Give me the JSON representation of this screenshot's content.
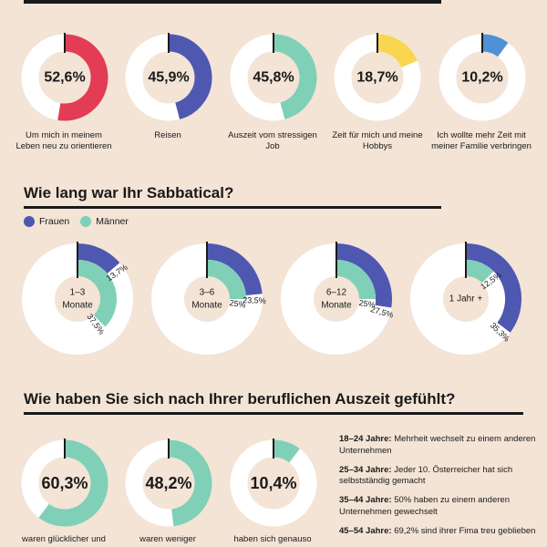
{
  "sections": {
    "s2_title": "Wie lang war Ihr Sabbatical?",
    "s3_title": "Wie haben Sie sich nach Ihrer beruflichen Auszeit gefühlt?"
  },
  "legend": [
    {
      "label": "Frauen",
      "color": "#4f58b0"
    },
    {
      "label": "Männer",
      "color": "#7fd0b7"
    }
  ],
  "chart_data": [
    {
      "type": "pie",
      "subtype": "donut",
      "items": [
        {
          "value": 52.6,
          "label": "52,6%",
          "caption": "Um mich in meinem Leben neu zu orientieren",
          "color": "#e23d55"
        },
        {
          "value": 45.9,
          "label": "45,9%",
          "caption": "Reisen",
          "color": "#4f58b0"
        },
        {
          "value": 45.8,
          "label": "45,8%",
          "caption": "Auszeit vom stressigen Job",
          "color": "#7fd0b7"
        },
        {
          "value": 18.7,
          "label": "18,7%",
          "caption": "Zeit für mich und meine Hobbys",
          "color": "#f9d64f"
        },
        {
          "value": 10.2,
          "label": "10,2%",
          "caption": "Ich wollte mehr Zeit mit meiner Familie verbringen",
          "color": "#4f90d6"
        }
      ]
    },
    {
      "type": "pie",
      "subtype": "nested-donut",
      "series": [
        {
          "name": "Frauen"
        },
        {
          "name": "Männer"
        }
      ],
      "items": [
        {
          "category": "1–3 Monate",
          "frauen": 13.7,
          "frauen_label": "13,7%",
          "maenner": 37.5,
          "maenner_label": "37,5%"
        },
        {
          "category": "3–6 Monate",
          "frauen": 23.5,
          "frauen_label": "23,5%",
          "maenner": 25,
          "maenner_label": "25%"
        },
        {
          "category": "6–12 Monate",
          "frauen": 27.5,
          "frauen_label": "27,5%",
          "maenner": 25,
          "maenner_label": "25%"
        },
        {
          "category": "1 Jahr +",
          "frauen": 35.3,
          "frauen_label": "35,3%",
          "maenner": 12.5,
          "maenner_label": "12,5%"
        }
      ]
    },
    {
      "type": "pie",
      "subtype": "donut",
      "items": [
        {
          "value": 60.3,
          "label": "60,3%",
          "caption": "waren glücklicher und",
          "color": "#7fd0b7"
        },
        {
          "value": 48.2,
          "label": "48,2%",
          "caption": "waren weniger",
          "color": "#7fd0b7"
        },
        {
          "value": 10.4,
          "label": "10,4%",
          "caption": "haben sich genauso",
          "color": "#7fd0b7"
        }
      ]
    }
  ],
  "notes": [
    {
      "head": "18–24 Jahre:",
      "text": "Mehrheit wechselt zu einem anderen Unternehmen"
    },
    {
      "head": "25–34 Jahre:",
      "text": "Jeder 10. Österreicher hat sich selbstständig gemacht"
    },
    {
      "head": "35–44 Jahre:",
      "text": "50% haben zu einem anderen Unternehmen gewechselt"
    },
    {
      "head": "45–54 Jahre:",
      "text": "69,2% sind ihrer Fima treu geblieben"
    }
  ]
}
